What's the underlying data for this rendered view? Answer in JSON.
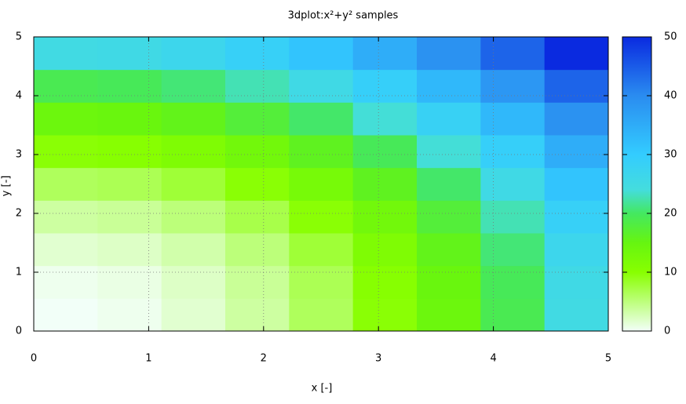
{
  "chart_data": {
    "type": "heatmap",
    "title": "3dplot:x²+y² samples",
    "x_label": "x [-]",
    "y_label": "y [-]",
    "xlim": [
      0,
      5
    ],
    "ylim": [
      0,
      5
    ],
    "xticks": [
      0,
      1,
      2,
      3,
      4,
      5
    ],
    "yticks": [
      0,
      1,
      2,
      3,
      4,
      5
    ],
    "cblim": [
      0,
      50
    ],
    "cbticks": [
      0,
      10,
      20,
      30,
      40,
      50
    ],
    "grid": true,
    "colorscale": [
      [
        0,
        "#f2fff8"
      ],
      [
        10,
        "#88ff00"
      ],
      [
        15,
        "#66f510"
      ],
      [
        20,
        "#44e860"
      ],
      [
        24,
        "#44dddd"
      ],
      [
        30,
        "#33ccff"
      ],
      [
        40,
        "#2a8cf0"
      ],
      [
        50,
        "#0a2ae0"
      ]
    ],
    "z": [
      [
        0,
        0.4,
        1.6,
        3.5,
        6.3,
        9.8,
        14.1,
        19.1,
        25
      ],
      [
        0.4,
        0.8,
        2,
        3.9,
        6.6,
        10.2,
        14.5,
        19.5,
        25.4
      ],
      [
        1.6,
        2,
        3.1,
        5.1,
        7.8,
        11.3,
        15.6,
        20.7,
        26.6
      ],
      [
        3.5,
        3.9,
        5.1,
        7,
        9.8,
        13.3,
        17.6,
        22.7,
        28.5
      ],
      [
        6.3,
        6.6,
        7.8,
        9.8,
        12.5,
        16,
        20.3,
        25.4,
        31.3
      ],
      [
        9.8,
        10.2,
        11.3,
        13.3,
        16,
        19.5,
        23.8,
        28.9,
        34.8
      ],
      [
        14.1,
        14.5,
        15.6,
        17.6,
        20.3,
        23.8,
        28.1,
        33.2,
        39.1
      ],
      [
        19.1,
        19.5,
        20.7,
        22.7,
        25.4,
        28.9,
        33.2,
        38.3,
        44.1
      ],
      [
        25,
        25.4,
        26.6,
        28.5,
        31.3,
        34.8,
        39.1,
        44.1,
        50
      ]
    ]
  }
}
